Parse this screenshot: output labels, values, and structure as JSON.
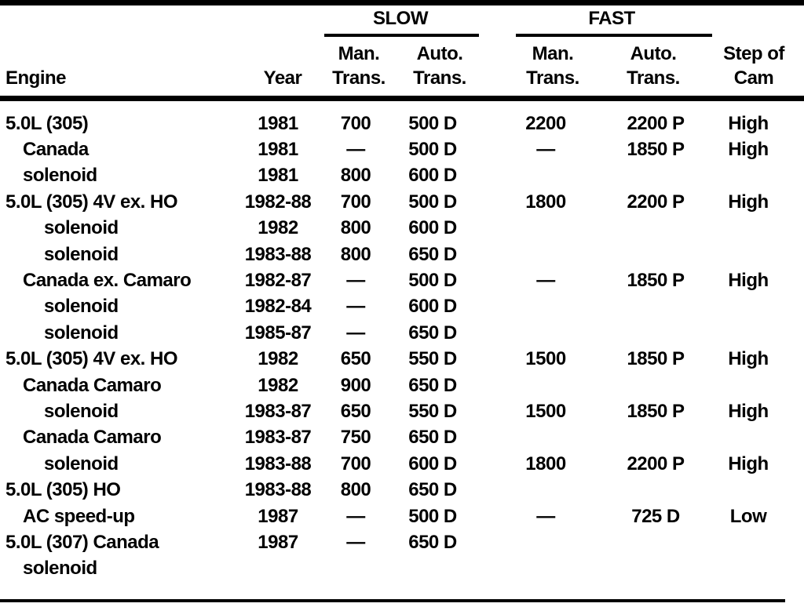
{
  "colors": {
    "ink": "#000000",
    "paper": "#ffffff"
  },
  "table": {
    "group_headers": {
      "slow": "SLOW",
      "fast": "FAST"
    },
    "column_headers": {
      "engine": "Engine",
      "year": "Year",
      "man": "Man.",
      "auto": "Auto.",
      "trans": "Trans.",
      "step_of": "Step of",
      "cam": "Cam"
    },
    "rows": [
      {
        "engine": "5.0L (305)",
        "indent": 0,
        "year": "1981",
        "slow_man": "700",
        "slow_auto": "500 D",
        "fast_man": "2200",
        "fast_auto": "2200 P",
        "cam": "High"
      },
      {
        "engine": "Canada",
        "indent": 1,
        "year": "1981",
        "slow_man": "—",
        "slow_auto": "500 D",
        "fast_man": "—",
        "fast_auto": "1850 P",
        "cam": "High"
      },
      {
        "engine": "solenoid",
        "indent": 1,
        "year": "1981",
        "slow_man": "800",
        "slow_auto": "600 D",
        "fast_man": "",
        "fast_auto": "",
        "cam": ""
      },
      {
        "engine": "5.0L (305) 4V ex. HO",
        "indent": 0,
        "year": "1982-88",
        "slow_man": "700",
        "slow_auto": "500 D",
        "fast_man": "1800",
        "fast_auto": "2200 P",
        "cam": "High"
      },
      {
        "engine": "solenoid",
        "indent": 2,
        "year": "1982",
        "slow_man": "800",
        "slow_auto": "600 D",
        "fast_man": "",
        "fast_auto": "",
        "cam": ""
      },
      {
        "engine": "solenoid",
        "indent": 2,
        "year": "1983-88",
        "slow_man": "800",
        "slow_auto": "650 D",
        "fast_man": "",
        "fast_auto": "",
        "cam": ""
      },
      {
        "engine": "Canada ex. Camaro",
        "indent": 1,
        "year": "1982-87",
        "slow_man": "—",
        "slow_auto": "500 D",
        "fast_man": "—",
        "fast_auto": "1850 P",
        "cam": "High"
      },
      {
        "engine": "solenoid",
        "indent": 2,
        "year": "1982-84",
        "slow_man": "—",
        "slow_auto": "600 D",
        "fast_man": "",
        "fast_auto": "",
        "cam": ""
      },
      {
        "engine": "solenoid",
        "indent": 2,
        "year": "1985-87",
        "slow_man": "—",
        "slow_auto": "650 D",
        "fast_man": "",
        "fast_auto": "",
        "cam": ""
      },
      {
        "engine": "5.0L (305) 4V ex. HO",
        "indent": 0,
        "year": "1982",
        "slow_man": "650",
        "slow_auto": "550 D",
        "fast_man": "1500",
        "fast_auto": "1850 P",
        "cam": "High"
      },
      {
        "engine": "Canada Camaro",
        "indent": 1,
        "year": "1982",
        "slow_man": "900",
        "slow_auto": "650 D",
        "fast_man": "",
        "fast_auto": "",
        "cam": ""
      },
      {
        "engine": "solenoid",
        "indent": 2,
        "year": "1983-87",
        "slow_man": "650",
        "slow_auto": "550 D",
        "fast_man": "1500",
        "fast_auto": "1850 P",
        "cam": "High"
      },
      {
        "engine": "Canada Camaro",
        "indent": 1,
        "year": "1983-87",
        "slow_man": "750",
        "slow_auto": "650 D",
        "fast_man": "",
        "fast_auto": "",
        "cam": ""
      },
      {
        "engine": "solenoid",
        "indent": 2,
        "year": "1983-88",
        "slow_man": "700",
        "slow_auto": "600 D",
        "fast_man": "1800",
        "fast_auto": "2200 P",
        "cam": "High"
      },
      {
        "engine": "5.0L (305) HO",
        "indent": 0,
        "year": "1983-88",
        "slow_man": "800",
        "slow_auto": "650 D",
        "fast_man": "",
        "fast_auto": "",
        "cam": ""
      },
      {
        "engine": "AC speed-up",
        "indent": 1,
        "year": "1987",
        "slow_man": "—",
        "slow_auto": "500 D",
        "fast_man": "—",
        "fast_auto": "725 D",
        "cam": "Low"
      },
      {
        "engine": "5.0L (307) Canada",
        "indent": 0,
        "year": "1987",
        "slow_man": "—",
        "slow_auto": "650 D",
        "fast_man": "",
        "fast_auto": "",
        "cam": ""
      },
      {
        "engine": "solenoid",
        "indent": 1,
        "year": "",
        "slow_man": "",
        "slow_auto": "",
        "fast_man": "",
        "fast_auto": "",
        "cam": ""
      }
    ]
  }
}
